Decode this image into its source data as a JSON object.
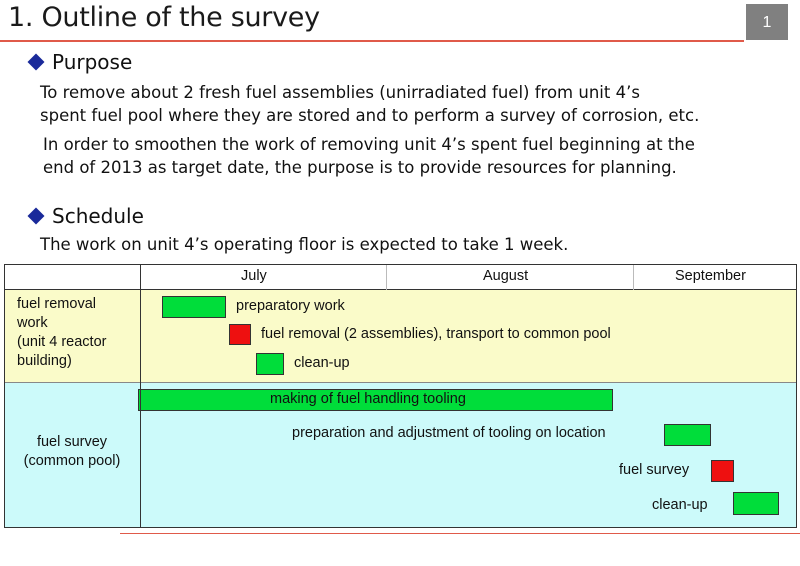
{
  "slide": {
    "title": "1. Outline of the survey",
    "page_number": "1"
  },
  "purpose": {
    "heading": "Purpose",
    "para1_line1": "To remove about 2 fresh fuel assemblies (unirradiated fuel) from unit 4’s",
    "para1_line2": "spent fuel pool where they are stored and to perform a survey of corrosion, etc.",
    "para2_line1": "In order to smoothen the work of removing unit 4’s spent fuel beginning at the",
    "para2_line2": "end of 2013 as target date, the purpose is to provide resources for planning."
  },
  "schedule": {
    "heading": "Schedule",
    "line": "The work on unit 4’s operating floor is expected to take 1 week."
  },
  "gantt": {
    "months": [
      "July",
      "August",
      "September"
    ],
    "row1_label": [
      "fuel removal",
      "work",
      "(unit 4 reactor",
      "building)"
    ],
    "row2_label": [
      "fuel survey",
      "(common pool)"
    ],
    "tasks": {
      "preparatory": "preparatory work",
      "fuel_removal": "fuel removal (2 assemblies), transport to common pool",
      "cleanup1": "clean-up",
      "tooling": "making of fuel handling tooling",
      "adjust": "preparation and adjustment of tooling on location",
      "survey": "fuel survey",
      "cleanup2": "clean-up"
    }
  },
  "colors": {
    "work_bar": "#00dd3a",
    "critical_bar": "#ee1010",
    "row1_bg": "#fafbc9",
    "row2_bg": "#ccfafa",
    "accent_rule": "#e05a4a"
  }
}
